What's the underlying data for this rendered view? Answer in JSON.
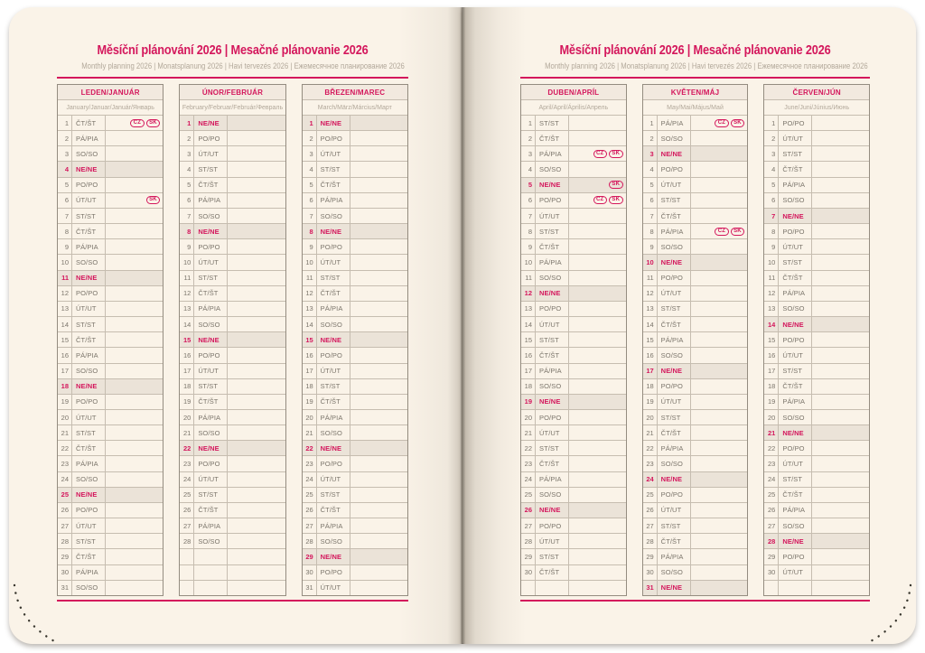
{
  "book": {
    "title": "Měsíční plánování 2026 | Mesačné plánovanie 2026",
    "subtitle": "Monthly planning 2026 | Monatsplanung 2026 | Havi tervezés 2026 | Ежемесячное планирование 2026"
  },
  "colors": {
    "accent": "#d4175c",
    "page_bg": "#faf3e8",
    "head_bg": "#f2e9df",
    "sunday_bg": "#ebe3d8",
    "day_text": "#7b756b",
    "muted_text": "#b2a89a",
    "grid_border": "#c6bdb0",
    "table_border": "#948c80",
    "stitch": "#3a382f"
  },
  "row_slots": 31,
  "pages": [
    {
      "name": "left",
      "months": [
        {
          "title": "LEDEN/JANUÁR",
          "subtitle": "January/Januar/Január/Январь",
          "days": [
            [
              1,
              "ČT/ŠT",
              [
                "CZ",
                "SK"
              ]
            ],
            [
              2,
              "PÁ/PIA"
            ],
            [
              3,
              "SO/SO"
            ],
            [
              4,
              "NE/NE"
            ],
            [
              5,
              "PO/PO"
            ],
            [
              6,
              "ÚT/UT",
              [
                "SK"
              ]
            ],
            [
              7,
              "ST/ST"
            ],
            [
              8,
              "ČT/ŠT"
            ],
            [
              9,
              "PÁ/PIA"
            ],
            [
              10,
              "SO/SO"
            ],
            [
              11,
              "NE/NE"
            ],
            [
              12,
              "PO/PO"
            ],
            [
              13,
              "ÚT/UT"
            ],
            [
              14,
              "ST/ST"
            ],
            [
              15,
              "ČT/ŠT"
            ],
            [
              16,
              "PÁ/PIA"
            ],
            [
              17,
              "SO/SO"
            ],
            [
              18,
              "NE/NE"
            ],
            [
              19,
              "PO/PO"
            ],
            [
              20,
              "ÚT/UT"
            ],
            [
              21,
              "ST/ST"
            ],
            [
              22,
              "ČT/ŠT"
            ],
            [
              23,
              "PÁ/PIA"
            ],
            [
              24,
              "SO/SO"
            ],
            [
              25,
              "NE/NE"
            ],
            [
              26,
              "PO/PO"
            ],
            [
              27,
              "ÚT/UT"
            ],
            [
              28,
              "ST/ST"
            ],
            [
              29,
              "ČT/ŠT"
            ],
            [
              30,
              "PÁ/PIA"
            ],
            [
              31,
              "SO/SO"
            ]
          ]
        },
        {
          "title": "ÚNOR/FEBRUÁR",
          "subtitle": "February/Februar/Február/Февраль",
          "days": [
            [
              1,
              "NE/NE"
            ],
            [
              2,
              "PO/PO"
            ],
            [
              3,
              "ÚT/UT"
            ],
            [
              4,
              "ST/ST"
            ],
            [
              5,
              "ČT/ŠT"
            ],
            [
              6,
              "PÁ/PIA"
            ],
            [
              7,
              "SO/SO"
            ],
            [
              8,
              "NE/NE"
            ],
            [
              9,
              "PO/PO"
            ],
            [
              10,
              "ÚT/UT"
            ],
            [
              11,
              "ST/ST"
            ],
            [
              12,
              "ČT/ŠT"
            ],
            [
              13,
              "PÁ/PIA"
            ],
            [
              14,
              "SO/SO"
            ],
            [
              15,
              "NE/NE"
            ],
            [
              16,
              "PO/PO"
            ],
            [
              17,
              "ÚT/UT"
            ],
            [
              18,
              "ST/ST"
            ],
            [
              19,
              "ČT/ŠT"
            ],
            [
              20,
              "PÁ/PIA"
            ],
            [
              21,
              "SO/SO"
            ],
            [
              22,
              "NE/NE"
            ],
            [
              23,
              "PO/PO"
            ],
            [
              24,
              "ÚT/UT"
            ],
            [
              25,
              "ST/ST"
            ],
            [
              26,
              "ČT/ŠT"
            ],
            [
              27,
              "PÁ/PIA"
            ],
            [
              28,
              "SO/SO"
            ]
          ]
        },
        {
          "title": "BŘEZEN/MAREC",
          "subtitle": "March/März/Március/Март",
          "days": [
            [
              1,
              "NE/NE"
            ],
            [
              2,
              "PO/PO"
            ],
            [
              3,
              "ÚT/UT"
            ],
            [
              4,
              "ST/ST"
            ],
            [
              5,
              "ČT/ŠT"
            ],
            [
              6,
              "PÁ/PIA"
            ],
            [
              7,
              "SO/SO"
            ],
            [
              8,
              "NE/NE"
            ],
            [
              9,
              "PO/PO"
            ],
            [
              10,
              "ÚT/UT"
            ],
            [
              11,
              "ST/ST"
            ],
            [
              12,
              "ČT/ŠT"
            ],
            [
              13,
              "PÁ/PIA"
            ],
            [
              14,
              "SO/SO"
            ],
            [
              15,
              "NE/NE"
            ],
            [
              16,
              "PO/PO"
            ],
            [
              17,
              "ÚT/UT"
            ],
            [
              18,
              "ST/ST"
            ],
            [
              19,
              "ČT/ŠT"
            ],
            [
              20,
              "PÁ/PIA"
            ],
            [
              21,
              "SO/SO"
            ],
            [
              22,
              "NE/NE"
            ],
            [
              23,
              "PO/PO"
            ],
            [
              24,
              "ÚT/UT"
            ],
            [
              25,
              "ST/ST"
            ],
            [
              26,
              "ČT/ŠT"
            ],
            [
              27,
              "PÁ/PIA"
            ],
            [
              28,
              "SO/SO"
            ],
            [
              29,
              "NE/NE"
            ],
            [
              30,
              "PO/PO"
            ],
            [
              31,
              "ÚT/UT"
            ]
          ]
        }
      ]
    },
    {
      "name": "right",
      "months": [
        {
          "title": "DUBEN/APRÍL",
          "subtitle": "April/April/Április/Апрель",
          "days": [
            [
              1,
              "ST/ST"
            ],
            [
              2,
              "ČT/ŠT"
            ],
            [
              3,
              "PÁ/PIA",
              [
                "CZ",
                "SK"
              ]
            ],
            [
              4,
              "SO/SO"
            ],
            [
              5,
              "NE/NE",
              [
                "SK"
              ]
            ],
            [
              6,
              "PO/PO",
              [
                "CZ",
                "SK"
              ]
            ],
            [
              7,
              "ÚT/UT"
            ],
            [
              8,
              "ST/ST"
            ],
            [
              9,
              "ČT/ŠT"
            ],
            [
              10,
              "PÁ/PIA"
            ],
            [
              11,
              "SO/SO"
            ],
            [
              12,
              "NE/NE"
            ],
            [
              13,
              "PO/PO"
            ],
            [
              14,
              "ÚT/UT"
            ],
            [
              15,
              "ST/ST"
            ],
            [
              16,
              "ČT/ŠT"
            ],
            [
              17,
              "PÁ/PIA"
            ],
            [
              18,
              "SO/SO"
            ],
            [
              19,
              "NE/NE"
            ],
            [
              20,
              "PO/PO"
            ],
            [
              21,
              "ÚT/UT"
            ],
            [
              22,
              "ST/ST"
            ],
            [
              23,
              "ČT/ŠT"
            ],
            [
              24,
              "PÁ/PIA"
            ],
            [
              25,
              "SO/SO"
            ],
            [
              26,
              "NE/NE"
            ],
            [
              27,
              "PO/PO"
            ],
            [
              28,
              "ÚT/UT"
            ],
            [
              29,
              "ST/ST"
            ],
            [
              30,
              "ČT/ŠT"
            ]
          ]
        },
        {
          "title": "KVĚTEN/MÁJ",
          "subtitle": "May/Mai/Május/Май",
          "days": [
            [
              1,
              "PÁ/PIA",
              [
                "CZ",
                "SK"
              ]
            ],
            [
              2,
              "SO/SO"
            ],
            [
              3,
              "NE/NE"
            ],
            [
              4,
              "PO/PO"
            ],
            [
              5,
              "ÚT/UT"
            ],
            [
              6,
              "ST/ST"
            ],
            [
              7,
              "ČT/ŠT"
            ],
            [
              8,
              "PÁ/PIA",
              [
                "CZ",
                "SK"
              ]
            ],
            [
              9,
              "SO/SO"
            ],
            [
              10,
              "NE/NE"
            ],
            [
              11,
              "PO/PO"
            ],
            [
              12,
              "ÚT/UT"
            ],
            [
              13,
              "ST/ST"
            ],
            [
              14,
              "ČT/ŠT"
            ],
            [
              15,
              "PÁ/PIA"
            ],
            [
              16,
              "SO/SO"
            ],
            [
              17,
              "NE/NE"
            ],
            [
              18,
              "PO/PO"
            ],
            [
              19,
              "ÚT/UT"
            ],
            [
              20,
              "ST/ST"
            ],
            [
              21,
              "ČT/ŠT"
            ],
            [
              22,
              "PÁ/PIA"
            ],
            [
              23,
              "SO/SO"
            ],
            [
              24,
              "NE/NE"
            ],
            [
              25,
              "PO/PO"
            ],
            [
              26,
              "ÚT/UT"
            ],
            [
              27,
              "ST/ST"
            ],
            [
              28,
              "ČT/ŠT"
            ],
            [
              29,
              "PÁ/PIA"
            ],
            [
              30,
              "SO/SO"
            ],
            [
              31,
              "NE/NE"
            ]
          ]
        },
        {
          "title": "ČERVEN/JÚN",
          "subtitle": "June/Juni/Június/Июнь",
          "days": [
            [
              1,
              "PO/PO"
            ],
            [
              2,
              "ÚT/UT"
            ],
            [
              3,
              "ST/ST"
            ],
            [
              4,
              "ČT/ŠT"
            ],
            [
              5,
              "PÁ/PIA"
            ],
            [
              6,
              "SO/SO"
            ],
            [
              7,
              "NE/NE"
            ],
            [
              8,
              "PO/PO"
            ],
            [
              9,
              "ÚT/UT"
            ],
            [
              10,
              "ST/ST"
            ],
            [
              11,
              "ČT/ŠT"
            ],
            [
              12,
              "PÁ/PIA"
            ],
            [
              13,
              "SO/SO"
            ],
            [
              14,
              "NE/NE"
            ],
            [
              15,
              "PO/PO"
            ],
            [
              16,
              "ÚT/UT"
            ],
            [
              17,
              "ST/ST"
            ],
            [
              18,
              "ČT/ŠT"
            ],
            [
              19,
              "PÁ/PIA"
            ],
            [
              20,
              "SO/SO"
            ],
            [
              21,
              "NE/NE"
            ],
            [
              22,
              "PO/PO"
            ],
            [
              23,
              "ÚT/UT"
            ],
            [
              24,
              "ST/ST"
            ],
            [
              25,
              "ČT/ŠT"
            ],
            [
              26,
              "PÁ/PIA"
            ],
            [
              27,
              "SO/SO"
            ],
            [
              28,
              "NE/NE"
            ],
            [
              29,
              "PO/PO"
            ],
            [
              30,
              "ÚT/UT"
            ]
          ]
        }
      ]
    }
  ]
}
